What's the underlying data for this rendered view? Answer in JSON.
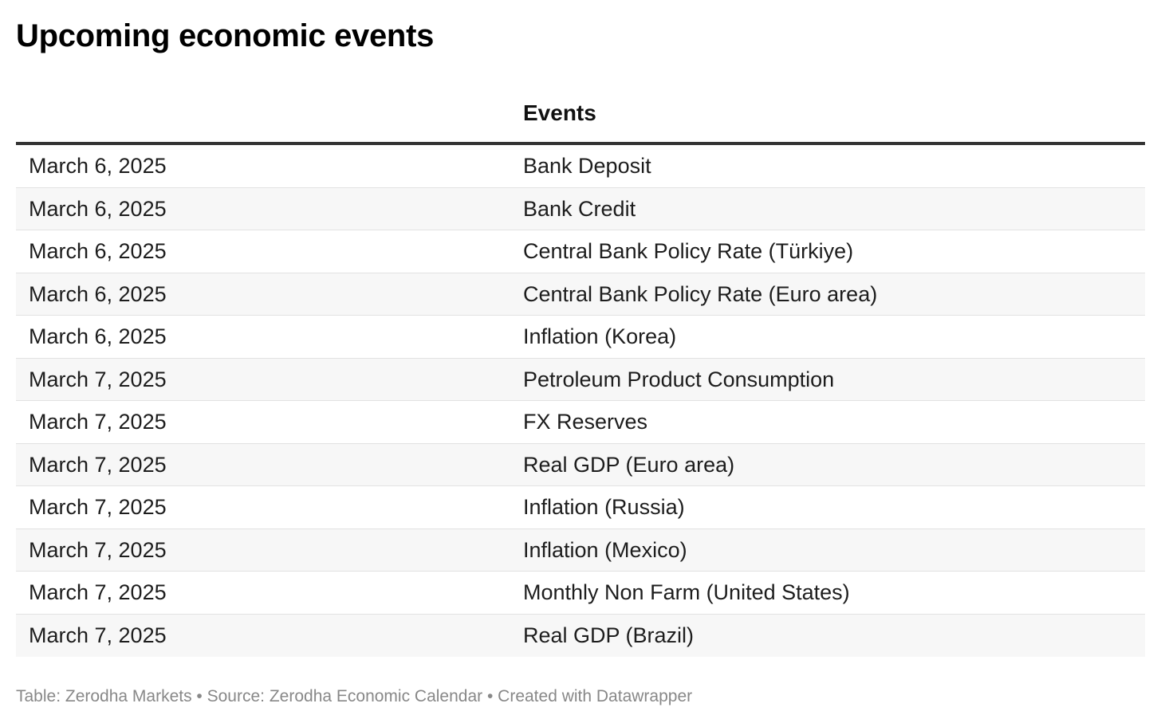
{
  "title": "Upcoming economic events",
  "table": {
    "columns": [
      "",
      "Events"
    ],
    "rows": [
      {
        "date": "March 6, 2025",
        "event": "Bank Deposit"
      },
      {
        "date": "March 6, 2025",
        "event": "Bank Credit"
      },
      {
        "date": "March 6, 2025",
        "event": "Central Bank Policy Rate (Türkiye)"
      },
      {
        "date": "March 6, 2025",
        "event": "Central Bank Policy Rate (Euro area)"
      },
      {
        "date": "March 6, 2025",
        "event": "Inflation (Korea)"
      },
      {
        "date": "March 7, 2025",
        "event": "Petroleum Product Consumption"
      },
      {
        "date": "March 7, 2025",
        "event": "FX Reserves"
      },
      {
        "date": "March 7, 2025",
        "event": "Real GDP (Euro area)"
      },
      {
        "date": "March 7, 2025",
        "event": "Inflation (Russia)"
      },
      {
        "date": "March 7, 2025",
        "event": "Inflation (Mexico)"
      },
      {
        "date": "March 7, 2025",
        "event": "Monthly Non Farm (United States)"
      },
      {
        "date": "March 7, 2025",
        "event": "Real GDP (Brazil)"
      }
    ]
  },
  "footer": "Table: Zerodha Markets • Source: Zerodha Economic Calendar • Created with Datawrapper",
  "colors": {
    "header_rule": "#333333",
    "row_divider": "#e2e2e2",
    "zebra": "#f7f7f7",
    "footer_text": "#888888"
  }
}
